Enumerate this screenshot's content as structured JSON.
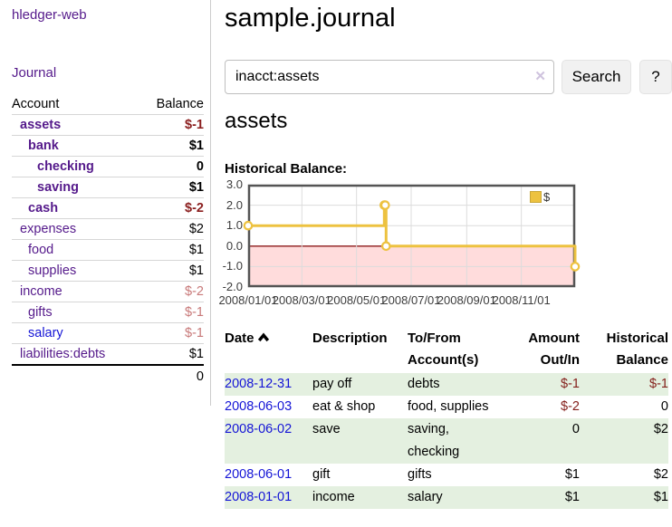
{
  "app": {
    "brand": "hledger-web",
    "nav_journal": "Journal"
  },
  "sidebar": {
    "columns": {
      "account": "Account",
      "balance": "Balance"
    },
    "accounts": [
      {
        "name": "assets",
        "balance": "$-1",
        "depth": 1,
        "bold": true,
        "neg": "strong",
        "link": "visited"
      },
      {
        "name": "bank",
        "balance": "$1",
        "depth": 2,
        "bold": true,
        "neg": "none",
        "link": "visited"
      },
      {
        "name": "checking",
        "balance": "0",
        "depth": 3,
        "bold": true,
        "neg": "none",
        "link": "visited"
      },
      {
        "name": "saving",
        "balance": "$1",
        "depth": 3,
        "bold": true,
        "neg": "none",
        "link": "visited"
      },
      {
        "name": "cash",
        "balance": "$-2",
        "depth": 2,
        "bold": true,
        "neg": "strong",
        "link": "visited"
      },
      {
        "name": "expenses",
        "balance": "$2",
        "depth": 1,
        "bold": false,
        "neg": "none",
        "link": "visited"
      },
      {
        "name": "food",
        "balance": "$1",
        "depth": 2,
        "bold": false,
        "neg": "none",
        "link": "visited"
      },
      {
        "name": "supplies",
        "balance": "$1",
        "depth": 2,
        "bold": false,
        "neg": "none",
        "link": "visited"
      },
      {
        "name": "income",
        "balance": "$-2",
        "depth": 1,
        "bold": false,
        "neg": "soft",
        "link": "visited"
      },
      {
        "name": "gifts",
        "balance": "$-1",
        "depth": 2,
        "bold": false,
        "neg": "soft",
        "link": "visited"
      },
      {
        "name": "salary",
        "balance": "$-1",
        "depth": 2,
        "bold": false,
        "neg": "soft",
        "link": "unvisited"
      },
      {
        "name": "liabilities:debts",
        "balance": "$1",
        "depth": 1,
        "bold": false,
        "neg": "none",
        "link": "visited"
      }
    ],
    "total": "0"
  },
  "header": {
    "title": "sample.journal"
  },
  "search": {
    "value": "inacct:assets",
    "clear_glyph": "✕",
    "button_label": "Search",
    "help_label": "?"
  },
  "account_page": {
    "title": "assets",
    "chart_label": "Historical Balance:"
  },
  "chart_data": {
    "type": "line",
    "step": true,
    "title": "Historical Balance",
    "series": [
      {
        "name": "$",
        "color": "#edc240",
        "points": [
          {
            "date": "2008-01-01",
            "value": 1
          },
          {
            "date": "2008-06-01",
            "value": 2
          },
          {
            "date": "2008-06-02",
            "value": 2
          },
          {
            "date": "2008-06-03",
            "value": 0
          },
          {
            "date": "2008-12-31",
            "value": -1
          }
        ]
      }
    ],
    "xrange": [
      "2008-01-01",
      "2008-12-31"
    ],
    "ylim": [
      -2,
      3
    ],
    "yticks": [
      3,
      2,
      1,
      0,
      -1,
      -2
    ],
    "xtick_labels": [
      "2008/01/01",
      "2008/03/01",
      "2008/05/01",
      "2008/07/01",
      "2008/09/01",
      "2008/11/01"
    ],
    "legend": {
      "label": "$",
      "position": "top-right"
    },
    "grid": true,
    "grid_color": "#dcdcdc",
    "border_color": "#545454",
    "zero_line_color": "#8b1a1a",
    "negative_region_color": "#ffdcdc"
  },
  "register": {
    "columns": {
      "date": "Date",
      "description": "Description",
      "accounts": "To/From Account(s)",
      "amount": "Amount Out/In",
      "balance": "Historical Balance"
    },
    "rows": [
      {
        "date": "2008-12-31",
        "description": "pay off",
        "accounts": "debts",
        "amount": "$-1",
        "balance": "$-1",
        "amount_neg": true,
        "balance_neg": true
      },
      {
        "date": "2008-06-03",
        "description": "eat & shop",
        "accounts": "food, supplies",
        "amount": "$-2",
        "balance": "0",
        "amount_neg": true,
        "balance_neg": false
      },
      {
        "date": "2008-06-02",
        "description": "save",
        "accounts": "saving, checking",
        "amount": "0",
        "balance": "$2",
        "amount_neg": false,
        "balance_neg": false
      },
      {
        "date": "2008-06-01",
        "description": "gift",
        "accounts": "gifts",
        "amount": "$1",
        "balance": "$2",
        "amount_neg": false,
        "balance_neg": false
      },
      {
        "date": "2008-01-01",
        "description": "income",
        "accounts": "salary",
        "amount": "$1",
        "balance": "$1",
        "amount_neg": false,
        "balance_neg": false
      }
    ]
  },
  "colors": {
    "link_visited": "#551a8b",
    "link_unvisited": "#1414d6",
    "negative_strong": "#8b1f1f",
    "negative_soft": "#c87979",
    "table_negative": "#84201c",
    "row_green": "#e4f0e0",
    "accent_gold": "#edc240",
    "chart_negative_bg": "#ffdcdc",
    "chart_zero_line": "#8b1a1a"
  }
}
